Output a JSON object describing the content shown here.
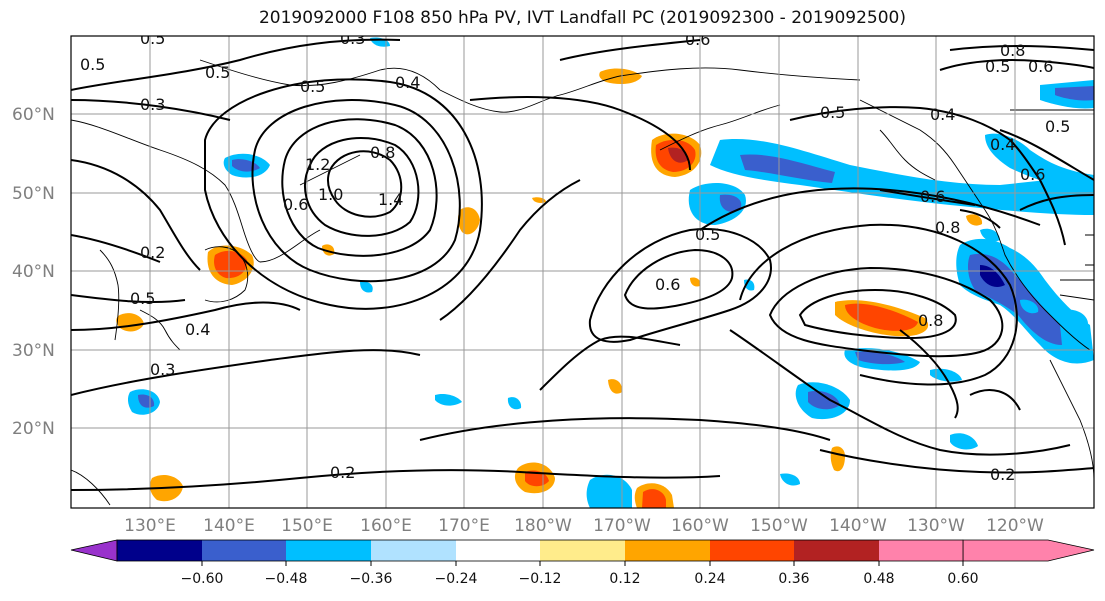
{
  "title": "2019092000 F108 850 hPa PV, IVT Landfall PC (2019092300 - 2019092500)",
  "map": {
    "lat_labels": [
      "60°N",
      "50°N",
      "40°N",
      "30°N",
      "20°N"
    ],
    "lon_labels": [
      "130°E",
      "140°E",
      "150°E",
      "160°E",
      "170°E",
      "180°W",
      "170°W",
      "160°W",
      "150°W",
      "140°W",
      "130°W",
      "120°W"
    ],
    "contour_labels": [
      "0.5",
      "0.5",
      "0.4",
      "0.5",
      "0.3",
      "0.3",
      "0.8",
      "1.2",
      "1.0",
      "0.6",
      "1.4",
      "0.5",
      "0.6",
      "0.5",
      "0.5",
      "0.6",
      "0.4",
      "0.2",
      "0.5",
      "0.4",
      "0.3",
      "0.2",
      "0.5",
      "0.6",
      "0.8",
      "0.8",
      "0.8",
      "0.6",
      "0.6",
      "0.4",
      "0.5",
      "0.2"
    ]
  },
  "colorbar": {
    "colors": [
      "#9932cc",
      "#00008b",
      "#3a5fcd",
      "#00bfff",
      "#b0e2ff",
      "#ffffff",
      "#ffec8b",
      "#ffa500",
      "#ff4500",
      "#b22222",
      "#ff82ab"
    ],
    "ticks": [
      "−0.60",
      "−0.48",
      "−0.36",
      "−0.24",
      "−0.12",
      "0.12",
      "0.24",
      "0.36",
      "0.48",
      "0.60"
    ]
  }
}
